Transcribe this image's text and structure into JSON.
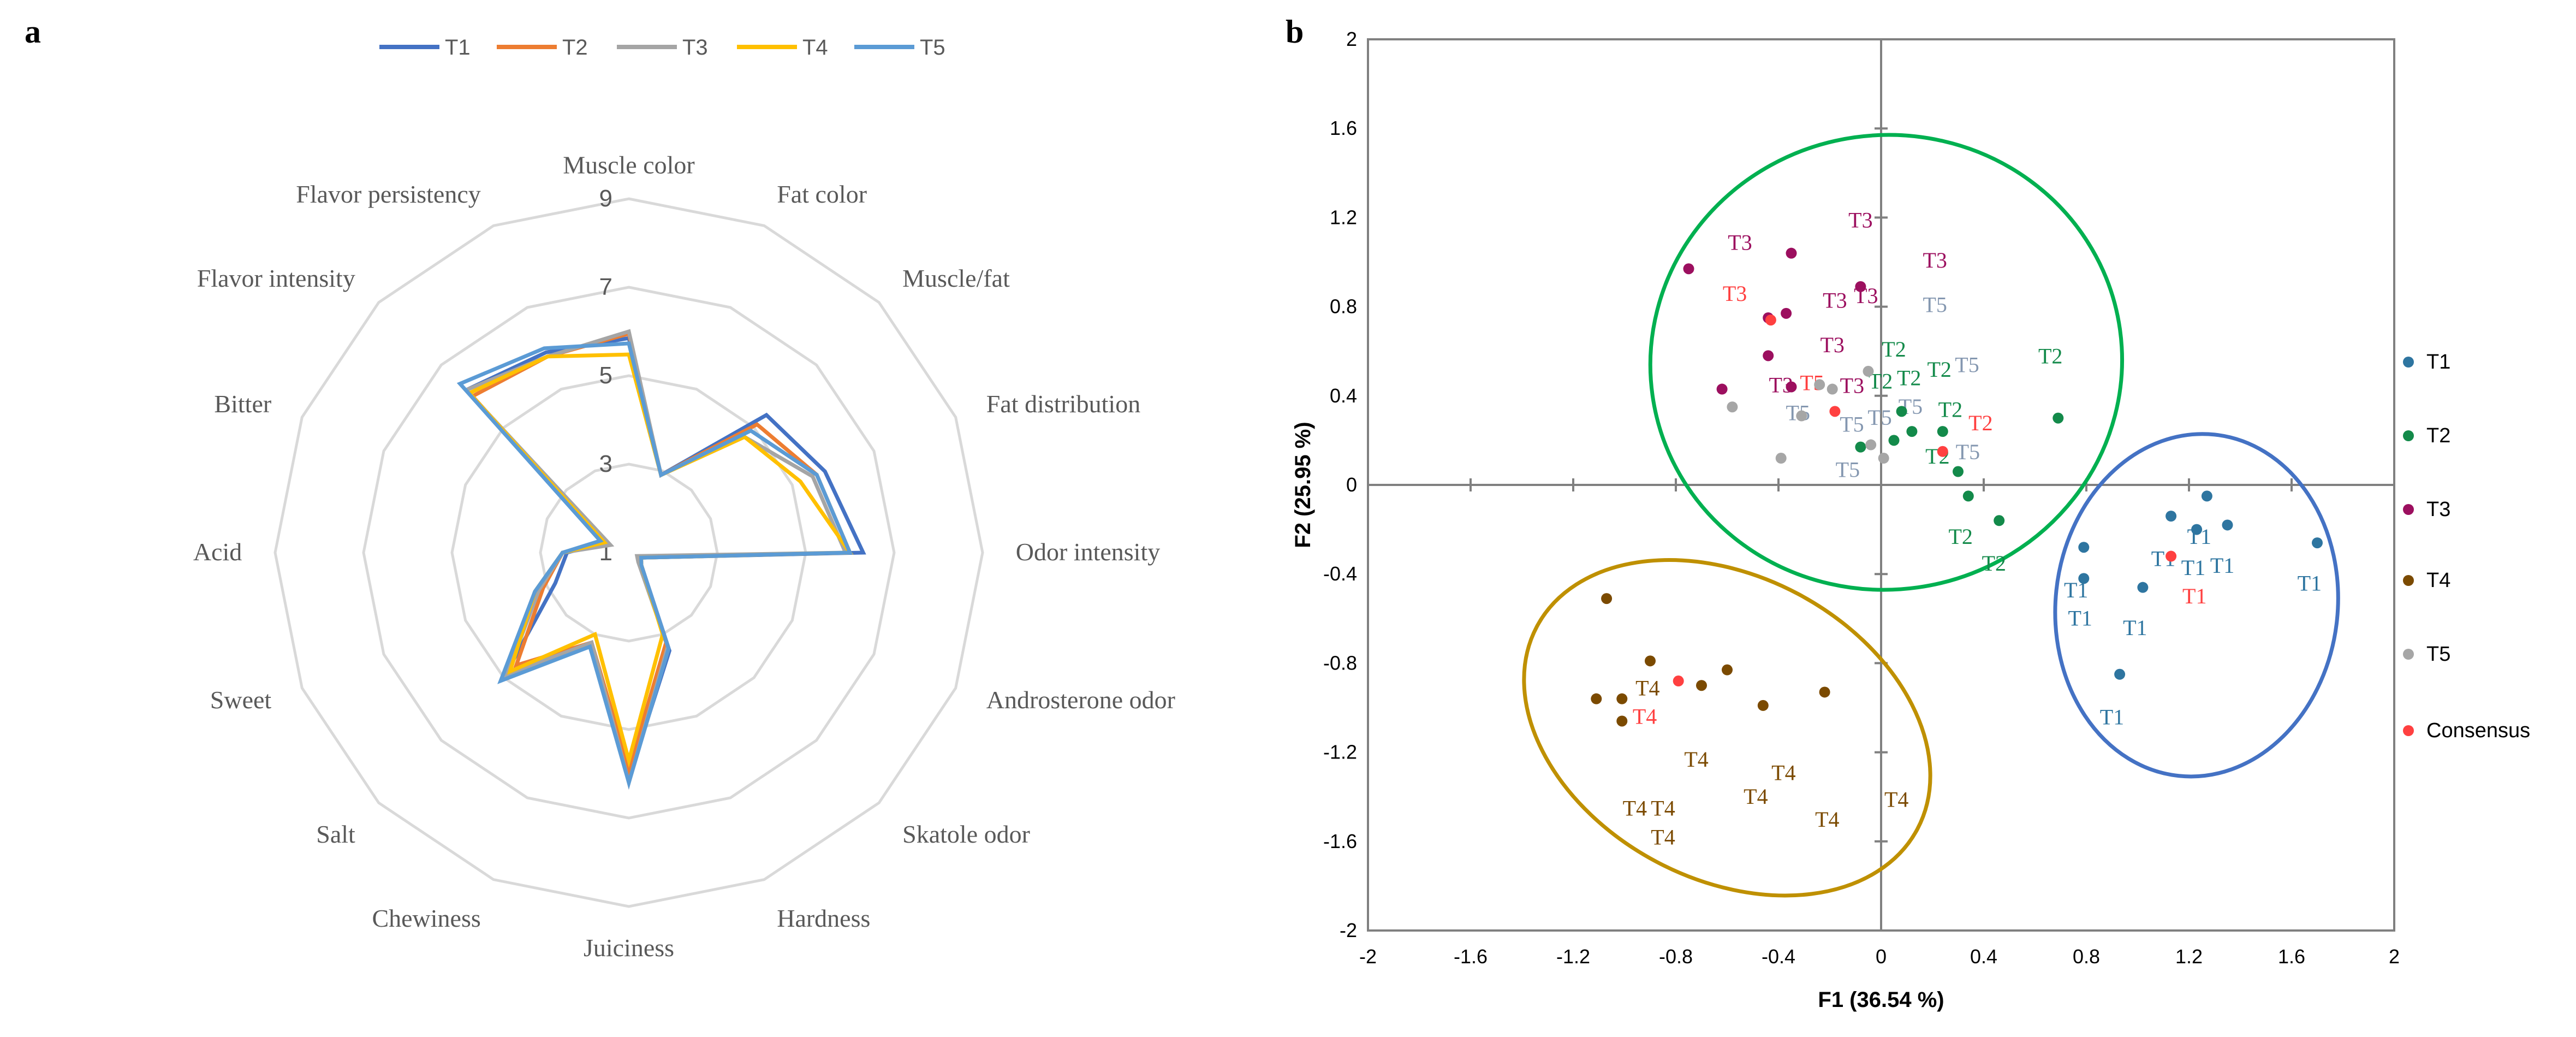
{
  "panels": {
    "a": "a",
    "b": "b"
  },
  "chart_data": [
    {
      "type": "radar",
      "categories": [
        "Muscle color",
        "Fat color",
        "Muscle/fat",
        "Fat distribution",
        "Odor intensity",
        "Androsterone odor",
        "Skatole odor",
        "Hardness",
        "Juiciness",
        "Chewiness",
        "Salt",
        "Sweet",
        "Acid",
        "Bitter",
        "Flavor intensity",
        "Flavor persistency"
      ],
      "rlim": [
        1,
        9
      ],
      "rticks": [
        1,
        3,
        5,
        7,
        9
      ],
      "grid_levels": [
        3,
        5,
        7,
        9
      ],
      "grid": true,
      "legend_position": "top",
      "grid_color": "#d9d9d9",
      "series": [
        {
          "name": "T1",
          "color": "#4472C4",
          "values": [
            5.85,
            2.9,
            5.4,
            5.8,
            6.3,
            1.3,
            1.4,
            3.4,
            6.1,
            3.3,
            5.0,
            2.8,
            2.4,
            1.6,
            6.2,
            5.9
          ]
        },
        {
          "name": "T2",
          "color": "#ED7D31",
          "values": [
            5.95,
            2.9,
            5.1,
            5.6,
            6.0,
            1.3,
            1.4,
            3.2,
            5.9,
            3.2,
            4.6,
            3.1,
            2.5,
            1.6,
            6.0,
            5.8
          ]
        },
        {
          "name": "T3",
          "color": "#A5A5A5",
          "values": [
            6.0,
            2.9,
            4.7,
            5.5,
            5.9,
            1.2,
            1.3,
            3.3,
            6.2,
            3.2,
            4.9,
            3.2,
            2.5,
            1.45,
            6.2,
            5.8
          ]
        },
        {
          "name": "T4",
          "color": "#FFC000",
          "values": [
            5.48,
            2.9,
            4.7,
            5.2,
            6.0,
            1.3,
            1.4,
            3.0,
            5.7,
            3.0,
            4.8,
            3.3,
            2.5,
            1.6,
            6.1,
            5.8
          ]
        },
        {
          "name": "T5",
          "color": "#5B9BD5",
          "values": [
            5.73,
            2.9,
            4.9,
            5.6,
            6.0,
            1.3,
            1.4,
            3.35,
            6.2,
            3.3,
            5.1,
            3.3,
            2.5,
            1.7,
            6.4,
            6.0
          ]
        }
      ]
    },
    {
      "type": "scatter",
      "xlabel": "F1 (36.54 %)",
      "ylabel": "F2 (25.95 %)",
      "xlim": [
        -2,
        2
      ],
      "ylim": [
        -2,
        2
      ],
      "xticks": [
        "-2",
        "-1.6",
        "-1.2",
        "-0.8",
        "-0.4",
        "0",
        "0.4",
        "0.8",
        "1.2",
        "1.6",
        "2"
      ],
      "yticks": [
        "2",
        "1.6",
        "1.2",
        "0.8",
        "0.4",
        "0",
        "-0.4",
        "-0.8",
        "-1.2",
        "-1.6",
        "-2"
      ],
      "legend_position": "right",
      "series": [
        {
          "name": "T1",
          "color": "#2E75A0",
          "points": [
            [
              1.27,
              -0.05
            ],
            [
              1.13,
              -0.14
            ],
            [
              1.23,
              -0.2
            ],
            [
              1.35,
              -0.18
            ],
            [
              1.7,
              -0.26
            ],
            [
              0.79,
              -0.28
            ],
            [
              0.79,
              -0.42
            ],
            [
              1.02,
              -0.46
            ],
            [
              0.93,
              -0.85
            ]
          ],
          "labels": [
            [
              1.24,
              -0.23
            ],
            [
              1.1,
              -0.33
            ],
            [
              1.2,
              -0.37
            ],
            [
              1.33,
              -0.36
            ],
            [
              1.67,
              -0.44
            ],
            [
              0.76,
              -0.47
            ],
            [
              0.76,
              -0.59
            ],
            [
              0.99,
              -0.64
            ],
            [
              0.9,
              -1.04
            ]
          ]
        },
        {
          "name": "T2",
          "color": "#138A4A",
          "points": [
            [
              0.08,
              0.33
            ],
            [
              0.12,
              0.24
            ],
            [
              0.05,
              0.2
            ],
            [
              -0.08,
              0.17
            ],
            [
              0.24,
              0.24
            ],
            [
              0.3,
              0.06
            ],
            [
              0.34,
              -0.05
            ],
            [
              0.46,
              -0.16
            ],
            [
              0.69,
              0.3
            ]
          ],
          "labels": [
            [
              0.05,
              0.61
            ],
            [
              0.1,
              0.54
            ],
            [
              0.21,
              0.52
            ],
            [
              0.03,
              0.48
            ],
            [
              0.27,
              0.34
            ],
            [
              0.22,
              0.13
            ],
            [
              0.66,
              0.58
            ],
            [
              0.31,
              -0.23
            ],
            [
              0.44,
              -0.35
            ]
          ]
        },
        {
          "name": "T3",
          "color": "#9C0F5F",
          "points": [
            [
              -0.75,
              0.97
            ],
            [
              -0.35,
              1.04
            ],
            [
              -0.08,
              0.89
            ],
            [
              -0.44,
              0.75
            ],
            [
              -0.37,
              0.77
            ],
            [
              -0.44,
              0.58
            ],
            [
              -0.62,
              0.43
            ],
            [
              -0.35,
              0.44
            ]
          ],
          "labels": [
            [
              -0.08,
              1.19
            ],
            [
              -0.55,
              1.09
            ],
            [
              0.21,
              1.01
            ],
            [
              -0.18,
              0.83
            ],
            [
              -0.11,
              0.85
            ],
            [
              -0.19,
              0.63
            ],
            [
              -0.1,
              0.46
            ],
            [
              -0.39,
              0.45
            ]
          ]
        },
        {
          "name": "T4",
          "color": "#7B4A00",
          "points": [
            [
              -1.07,
              -0.51
            ],
            [
              -0.9,
              -0.79
            ],
            [
              -0.6,
              -0.83
            ],
            [
              -0.7,
              -0.9
            ],
            [
              -1.11,
              -0.96
            ],
            [
              -1.01,
              -0.96
            ],
            [
              -1.01,
              -1.06
            ],
            [
              -0.46,
              -0.99
            ],
            [
              -0.22,
              -0.93
            ]
          ],
          "labels": [
            [
              -0.91,
              -0.91
            ],
            [
              -0.72,
              -1.23
            ],
            [
              -0.38,
              -1.29
            ],
            [
              -0.48,
              -1.38
            ],
            [
              -0.96,
              -1.45
            ],
            [
              -0.85,
              -1.45
            ],
            [
              -0.85,
              -1.58
            ],
            [
              -0.21,
              -1.5
            ],
            [
              0.06,
              -1.41
            ]
          ]
        },
        {
          "name": "T5",
          "color": "#A6A6A6",
          "label_color": "#8497B0",
          "points": [
            [
              -0.58,
              0.35
            ],
            [
              -0.31,
              0.31
            ],
            [
              -0.24,
              0.45
            ],
            [
              -0.19,
              0.43
            ],
            [
              -0.05,
              0.51
            ],
            [
              -0.39,
              0.12
            ],
            [
              -0.04,
              0.18
            ],
            [
              0.01,
              0.12
            ]
          ],
          "labels": [
            [
              0.21,
              0.81
            ],
            [
              0.25,
              0.54
            ],
            [
              0.1,
              0.45
            ],
            [
              -0.02,
              0.4
            ],
            [
              -0.35,
              0.35
            ],
            [
              -0.05,
              0.3
            ],
            [
              0.27,
              0.15
            ],
            [
              -0.13,
              0.07
            ]
          ]
        },
        {
          "name": "Consensus",
          "color": "#FF4040",
          "points": [
            [
              -0.43,
              0.74
            ],
            [
              -0.18,
              0.33
            ],
            [
              0.24,
              0.15
            ],
            [
              1.13,
              -0.32
            ],
            [
              -0.79,
              -0.88
            ]
          ],
          "point_labels": [
            {
              "text": "T3",
              "at": [
                -0.57,
                0.86
              ]
            },
            {
              "text": "T5",
              "at": [
                -0.32,
                0.46
              ]
            },
            {
              "text": "T2",
              "at": [
                0.32,
                0.28
              ]
            },
            {
              "text": "T1",
              "at": [
                1.21,
                -0.42
              ]
            },
            {
              "text": "T4",
              "at": [
                -0.93,
                -0.98
              ]
            }
          ]
        }
      ],
      "ellipses": [
        {
          "color": "#00B050",
          "center": [
            0.02,
            0.55
          ],
          "radii": [
            0.92,
            1.02
          ],
          "rotation_deg": -8
        },
        {
          "color": "#4472C4",
          "center": [
            1.23,
            -0.54
          ],
          "radii": [
            0.55,
            0.77
          ],
          "rotation_deg": 6
        },
        {
          "color": "#BF9000",
          "center": [
            -0.6,
            -1.09
          ],
          "radii": [
            0.84,
            0.68
          ],
          "rotation_deg": 28
        }
      ]
    }
  ]
}
